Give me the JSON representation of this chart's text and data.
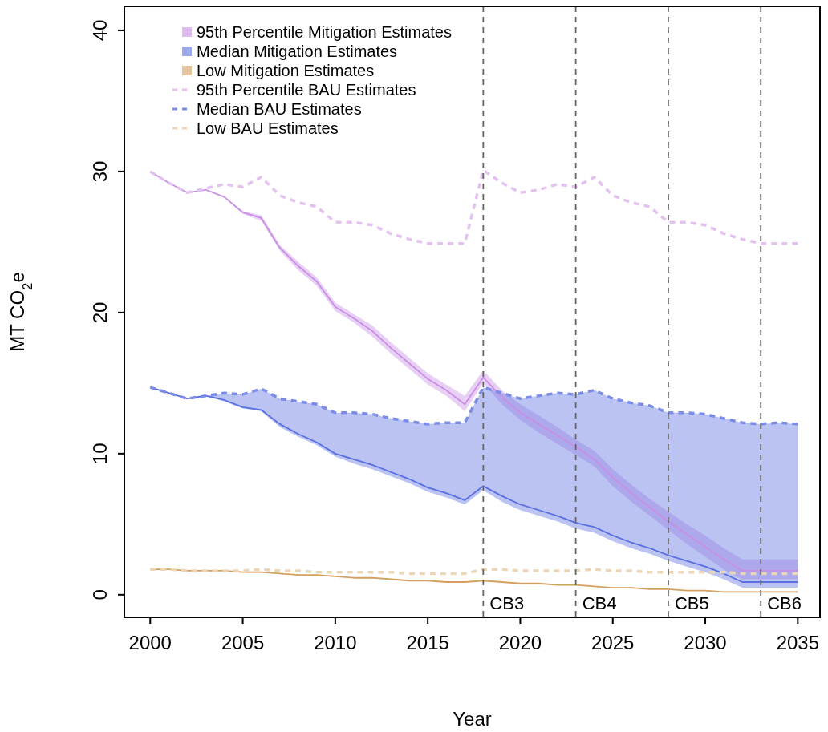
{
  "chart_data": {
    "type": "line",
    "xlabel": "Year",
    "ylabel": "MT CO$_{2}$e",
    "xlim": [
      1998.6,
      2036.2
    ],
    "ylim": [
      -1.6,
      41.7
    ],
    "xticks": [
      2000,
      2005,
      2010,
      2015,
      2020,
      2025,
      2030,
      2035
    ],
    "yticks": [
      0,
      10,
      20,
      30,
      40
    ],
    "grid": false,
    "legend": "top left",
    "x": [
      2000,
      2001,
      2002,
      2003,
      2004,
      2005,
      2006,
      2007,
      2008,
      2009,
      2010,
      2011,
      2012,
      2013,
      2014,
      2015,
      2016,
      2017,
      2018,
      2019,
      2020,
      2021,
      2022,
      2023,
      2024,
      2025,
      2026,
      2027,
      2028,
      2029,
      2030,
      2031,
      2032,
      2033,
      2034,
      2035
    ],
    "series": [
      {
        "name": "95th Percentile Mitigation Estimates",
        "color": "#c98ee6",
        "line_style": "solid",
        "values": [
          30.0,
          29.2,
          28.5,
          28.7,
          28.2,
          27.1,
          26.7,
          24.6,
          23.3,
          22.2,
          20.4,
          19.6,
          18.7,
          17.5,
          16.4,
          15.3,
          14.5,
          13.5,
          15.4,
          14.0,
          12.9,
          12.1,
          11.3,
          10.5,
          9.6,
          8.3,
          7.2,
          6.2,
          5.2,
          4.3,
          3.4,
          2.5,
          1.7,
          1.7,
          1.7,
          1.7
        ],
        "upper": [
          30.0,
          29.2,
          28.5,
          28.7,
          28.2,
          27.2,
          26.9,
          24.8,
          23.6,
          22.5,
          20.7,
          19.9,
          19.1,
          17.9,
          16.8,
          15.7,
          14.9,
          14.1,
          15.9,
          14.5,
          13.5,
          12.7,
          11.9,
          11.0,
          10.2,
          8.9,
          7.8,
          6.8,
          5.9,
          5.0,
          4.2,
          3.3,
          2.5,
          2.5,
          2.5,
          2.5
        ],
        "lower": [
          30.0,
          29.2,
          28.5,
          28.7,
          28.2,
          27.0,
          26.5,
          24.4,
          23.0,
          21.9,
          20.1,
          19.3,
          18.3,
          17.1,
          16.0,
          14.9,
          14.1,
          13.0,
          15.0,
          13.5,
          12.4,
          11.5,
          10.7,
          9.9,
          9.1,
          7.7,
          6.6,
          5.6,
          4.6,
          3.6,
          2.7,
          1.8,
          1.1,
          1.1,
          1.1,
          1.1
        ]
      },
      {
        "name": "Median Mitigation Estimates",
        "color": "#5a6fe0",
        "line_style": "solid",
        "values": [
          14.7,
          14.3,
          13.9,
          14.1,
          13.8,
          13.3,
          13.1,
          12.1,
          11.4,
          10.8,
          10.0,
          9.6,
          9.2,
          8.7,
          8.2,
          7.6,
          7.2,
          6.7,
          7.7,
          7.0,
          6.4,
          6.0,
          5.6,
          5.1,
          4.8,
          4.2,
          3.7,
          3.3,
          2.8,
          2.4,
          2.0,
          1.5,
          0.9,
          0.9,
          0.9,
          0.9
        ],
        "upper": [
          14.7,
          14.3,
          13.9,
          14.1,
          14.3,
          14.2,
          14.6,
          13.9,
          13.7,
          13.5,
          12.9,
          12.9,
          12.8,
          12.5,
          12.3,
          12.1,
          12.2,
          12.2,
          14.7,
          14.3,
          13.9,
          14.1,
          14.3,
          14.2,
          14.5,
          13.9,
          13.6,
          13.4,
          12.9,
          12.9,
          12.8,
          12.5,
          12.2,
          12.1,
          12.2,
          12.1
        ],
        "lower": [
          14.7,
          14.3,
          13.9,
          14.1,
          13.7,
          13.2,
          13.0,
          11.9,
          11.2,
          10.6,
          9.8,
          9.3,
          8.9,
          8.4,
          7.9,
          7.3,
          6.9,
          6.4,
          7.4,
          6.6,
          6.0,
          5.6,
          5.2,
          4.7,
          4.4,
          3.8,
          3.3,
          2.9,
          2.4,
          2.0,
          1.6,
          1.1,
          0.5,
          0.5,
          0.5,
          0.5
        ]
      },
      {
        "name": "Low Mitigation Estimates",
        "color": "#d4a060",
        "line_style": "solid",
        "values": [
          1.8,
          1.8,
          1.7,
          1.7,
          1.7,
          1.6,
          1.6,
          1.5,
          1.4,
          1.4,
          1.3,
          1.2,
          1.2,
          1.1,
          1.0,
          1.0,
          0.9,
          0.9,
          1.0,
          0.9,
          0.8,
          0.8,
          0.7,
          0.7,
          0.6,
          0.5,
          0.5,
          0.4,
          0.4,
          0.3,
          0.3,
          0.2,
          0.2,
          0.2,
          0.2,
          0.2
        ]
      },
      {
        "name": "95th Percentile BAU Estimates",
        "color": "#e4c2f0",
        "line_style": "dashed",
        "values": [
          30.0,
          29.2,
          28.5,
          28.8,
          29.1,
          28.9,
          29.6,
          28.3,
          27.8,
          27.5,
          26.4,
          26.4,
          26.2,
          25.6,
          25.2,
          24.9,
          24.9,
          24.9,
          30.1,
          29.2,
          28.5,
          28.7,
          29.1,
          28.9,
          29.6,
          28.3,
          27.8,
          27.5,
          26.4,
          26.4,
          26.2,
          25.6,
          25.2,
          24.9,
          24.9,
          24.9
        ]
      },
      {
        "name": "Median BAU Estimates",
        "color": "#7a8be8",
        "line_style": "dashed",
        "values": [
          14.7,
          14.3,
          13.9,
          14.1,
          14.3,
          14.2,
          14.6,
          13.9,
          13.7,
          13.5,
          12.9,
          12.9,
          12.8,
          12.5,
          12.3,
          12.1,
          12.2,
          12.2,
          14.7,
          14.3,
          13.9,
          14.1,
          14.3,
          14.2,
          14.5,
          13.9,
          13.6,
          13.4,
          12.9,
          12.9,
          12.8,
          12.5,
          12.2,
          12.1,
          12.2,
          12.1
        ]
      },
      {
        "name": "Low BAU Estimates",
        "color": "#ecd6b8",
        "line_style": "dashed",
        "values": [
          1.8,
          1.8,
          1.7,
          1.7,
          1.7,
          1.7,
          1.8,
          1.7,
          1.7,
          1.6,
          1.6,
          1.6,
          1.6,
          1.6,
          1.5,
          1.5,
          1.5,
          1.5,
          1.8,
          1.8,
          1.7,
          1.7,
          1.7,
          1.7,
          1.8,
          1.7,
          1.7,
          1.6,
          1.6,
          1.6,
          1.6,
          1.6,
          1.5,
          1.5,
          1.5,
          1.5
        ]
      }
    ],
    "ref_lines": [
      {
        "axis": "x",
        "value": 2018,
        "label": "CB3",
        "color": "#666666",
        "line_style": "dashed"
      },
      {
        "axis": "x",
        "value": 2023,
        "label": "CB4",
        "color": "#666666",
        "line_style": "dashed"
      },
      {
        "axis": "x",
        "value": 2028,
        "label": "CB5",
        "color": "#666666",
        "line_style": "dashed"
      },
      {
        "axis": "x",
        "value": 2033,
        "label": "CB6",
        "color": "#666666",
        "line_style": "dashed"
      }
    ]
  }
}
